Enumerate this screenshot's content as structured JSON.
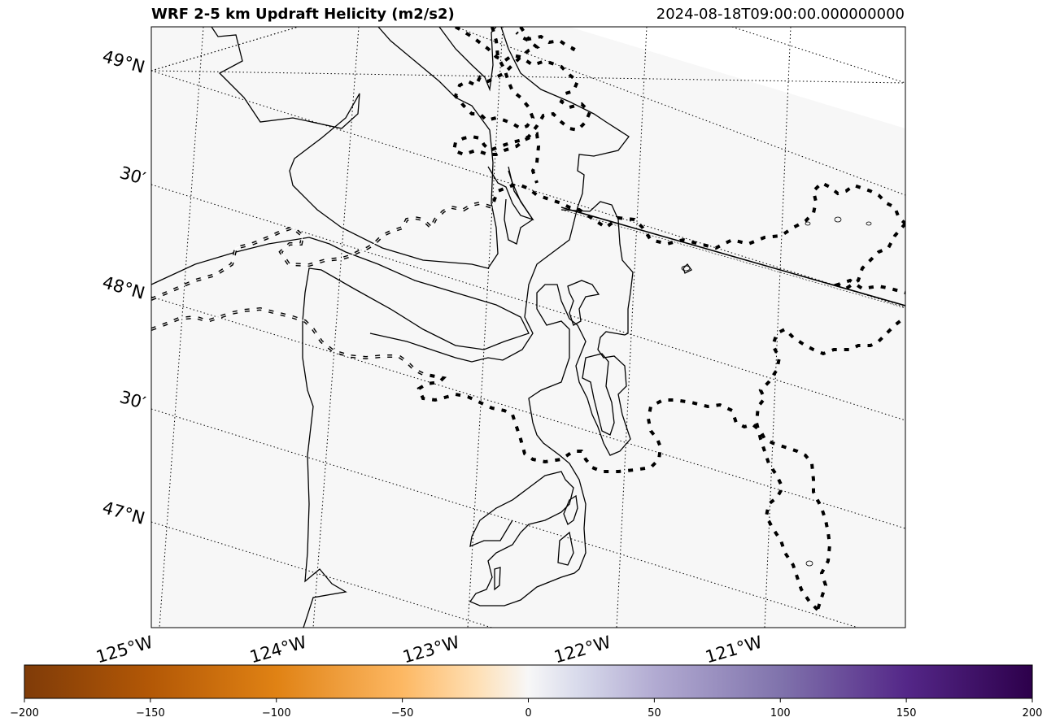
{
  "title": "WRF 2-5 km Updraft Helicity (m2/s2)",
  "timestamp": "2024-08-18T09:00:00.000000000",
  "lat_labels": [
    "49°N",
    "30′",
    "48°N",
    "30′",
    "47°N"
  ],
  "lon_labels": [
    "125°W",
    "124°W",
    "123°W",
    "122°W",
    "121°W"
  ],
  "colorbar": {
    "ticks": [
      "−200",
      "−150",
      "−100",
      "−50",
      "0",
      "50",
      "100",
      "150",
      "200"
    ],
    "min": -200,
    "max": 200,
    "colormap": "PuOr",
    "colors": [
      "#7f3b08",
      "#e08214",
      "#fdb863",
      "#fee0b6",
      "#f7f7f7",
      "#d8daeb",
      "#b2abd2",
      "#8073ac",
      "#2d004b"
    ]
  },
  "map_background": "#f7f7f7",
  "field_value": 0
}
